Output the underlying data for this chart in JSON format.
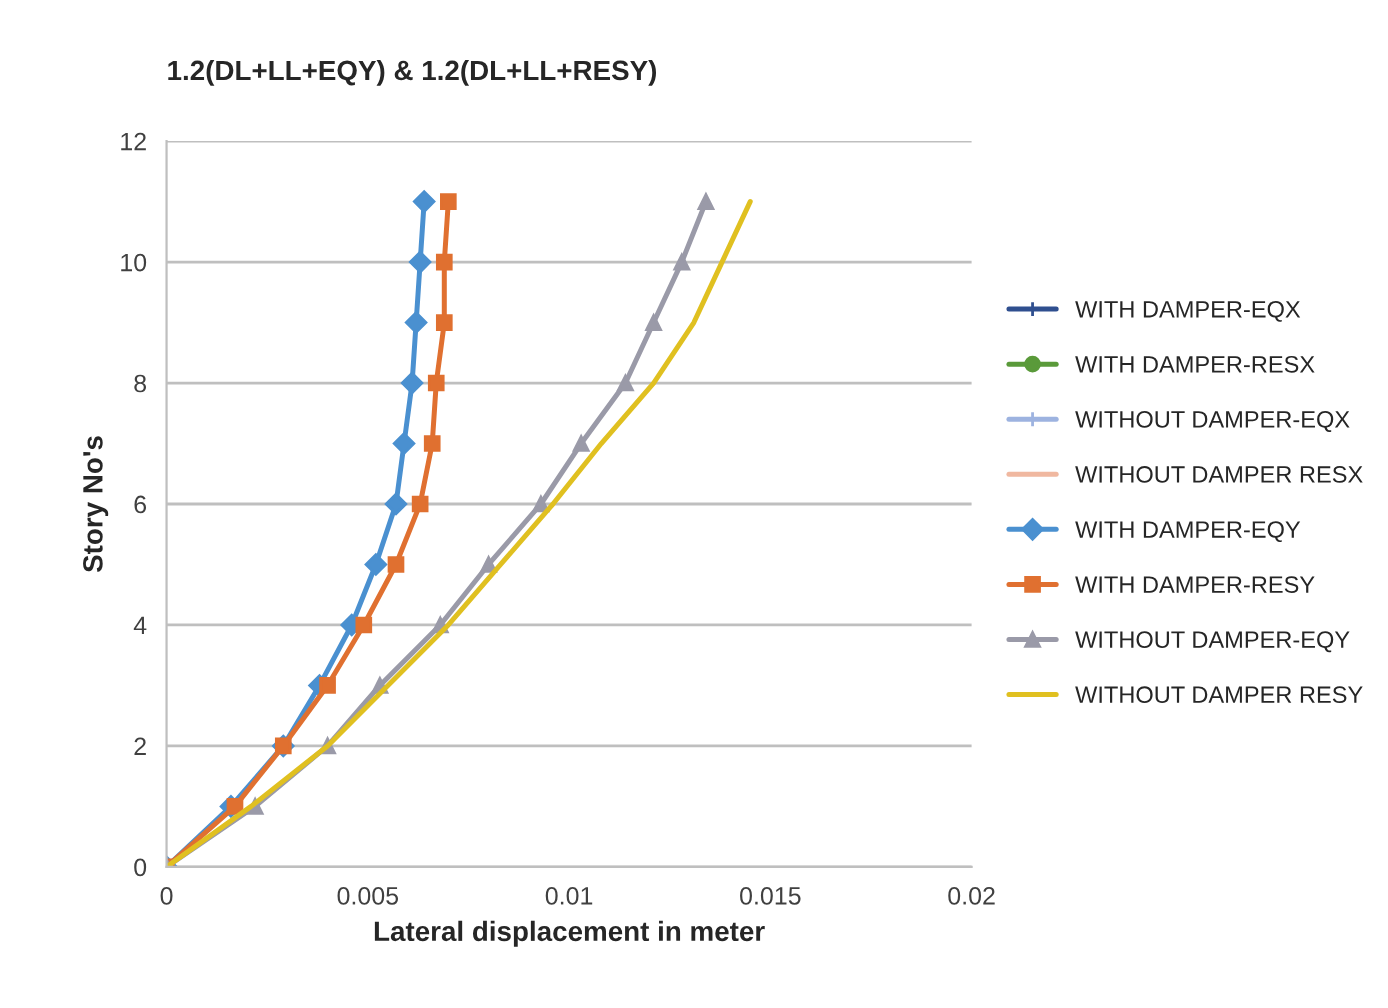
{
  "chart_data": {
    "type": "line",
    "title": "1.2(DL+LL+EQY) & 1.2(DL+LL+RESY)",
    "xlabel": "Lateral displacement in meter",
    "ylabel": "Story No's",
    "xlim": [
      0,
      0.02
    ],
    "xticks": [
      0,
      0.005,
      0.01,
      0.015,
      0.02
    ],
    "ylim": [
      0,
      12
    ],
    "yticks": [
      0,
      2,
      4,
      6,
      8,
      10,
      12
    ],
    "grid": "y",
    "legend": "right",
    "series": [
      {
        "name": "WITH DAMPER-EQX",
        "color": "#2f4f8f",
        "marker": "cross"
      },
      {
        "name": "WITH DAMPER-RESX",
        "color": "#5a9a3a",
        "marker": "circle"
      },
      {
        "name": "WITHOUT DAMPER-EQX",
        "color": "#9db3e0",
        "marker": "cross"
      },
      {
        "name": "WITHOUT DAMPER RESX",
        "color": "#f0b8a0",
        "marker": "none"
      },
      {
        "name": "WITH DAMPER-EQY",
        "color": "#4a90d0",
        "marker": "diamond",
        "x": [
          0,
          0.0016,
          0.0029,
          0.0038,
          0.0046,
          0.0052,
          0.0057,
          0.0059,
          0.0061,
          0.0062,
          0.0063,
          0.0064
        ],
        "values": [
          0,
          1,
          2,
          3,
          4,
          5,
          6,
          7,
          8,
          9,
          10,
          11
        ]
      },
      {
        "name": "WITH DAMPER-RESY",
        "color": "#e07030",
        "marker": "square",
        "x": [
          0,
          0.0017,
          0.0029,
          0.004,
          0.0049,
          0.0057,
          0.0063,
          0.0066,
          0.0067,
          0.0069,
          0.0069,
          0.007
        ],
        "values": [
          0,
          1,
          2,
          3,
          4,
          5,
          6,
          7,
          8,
          9,
          10,
          11
        ]
      },
      {
        "name": "WITHOUT DAMPER-EQY",
        "color": "#9a9aa8",
        "marker": "triangle",
        "x": [
          0,
          0.0022,
          0.004,
          0.0053,
          0.0068,
          0.008,
          0.0093,
          0.0103,
          0.0114,
          0.0121,
          0.0128,
          0.0134
        ],
        "values": [
          0,
          1,
          2,
          3,
          4,
          5,
          6,
          7,
          8,
          9,
          10,
          11
        ]
      },
      {
        "name": "WITHOUT DAMPER RESY",
        "color": "#e0c020",
        "marker": "none",
        "x": [
          0,
          0.0021,
          0.004,
          0.0055,
          0.007,
          0.0083,
          0.0096,
          0.0108,
          0.0121,
          0.0131,
          0.0138,
          0.0145
        ],
        "values": [
          0,
          1,
          2,
          3,
          4,
          5,
          6,
          7,
          8,
          9,
          10,
          11
        ]
      }
    ]
  }
}
